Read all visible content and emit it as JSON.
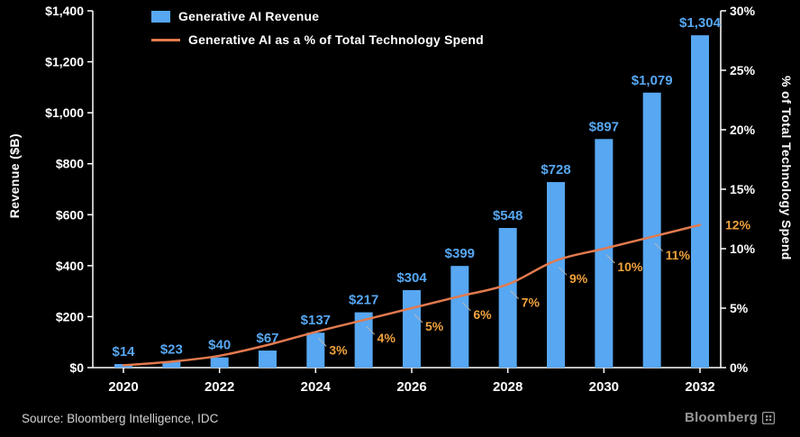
{
  "legend": {
    "items": [
      {
        "label": "Generative AI Revenue",
        "type": "bar",
        "color": "#57a7f2"
      },
      {
        "label": "Generative AI as a % of Total Technology Spend",
        "type": "line",
        "color": "#e27a4e"
      }
    ]
  },
  "footer": {
    "source": "Source: Bloomberg Intelligence, IDC",
    "brand": "Bloomberg"
  },
  "colors": {
    "background": "#000000",
    "axis": "#ffffff",
    "bar": "#57a7f2",
    "bar_label": "#57a7f2",
    "line": "#e27a4e",
    "line_label": "#f0a23c",
    "connector": "#b8b8b8",
    "source_text": "#d2d2d2",
    "brand": "#969696"
  },
  "chart_data": {
    "type": "bar",
    "subtype": "bar+line dual-axis combo",
    "categories": [
      "2020",
      "2021",
      "2022",
      "2023",
      "2024",
      "2025",
      "2026",
      "2027",
      "2028",
      "2029",
      "2030",
      "2031",
      "2032"
    ],
    "series": [
      {
        "name": "Generative AI Revenue",
        "type": "bar",
        "axis": "left",
        "color": "#57a7f2",
        "values": [
          14,
          23,
          40,
          67,
          137,
          217,
          304,
          399,
          548,
          728,
          897,
          1079,
          1304
        ],
        "labels": [
          "$14",
          "$23",
          "$40",
          "$67",
          "$137",
          "$217",
          "$304",
          "$399",
          "$548",
          "$728",
          "$897",
          "$1,079",
          "$1,304"
        ]
      },
      {
        "name": "Generative AI as a % of Total Technology Spend",
        "type": "line",
        "axis": "right",
        "color": "#e27a4e",
        "values": [
          0.2,
          0.5,
          1.0,
          1.9,
          3,
          4,
          5,
          6,
          7,
          9,
          10,
          11,
          12
        ],
        "labels": [
          "",
          "",
          "",
          "",
          "3%",
          "4%",
          "5%",
          "6%",
          "7%",
          "9%",
          "10%",
          "11%",
          "12%"
        ]
      }
    ],
    "left_axis": {
      "title": "Revenue ($B)",
      "min": 0,
      "max": 1400,
      "step": 200,
      "tick_labels": [
        "$0",
        "$200",
        "$400",
        "$600",
        "$800",
        "$1,000",
        "$1,200",
        "$1,400"
      ]
    },
    "right_axis": {
      "title": "% of Total Technology Spend",
      "min": 0,
      "max": 30,
      "step": 5,
      "tick_labels": [
        "0%",
        "5%",
        "10%",
        "15%",
        "20%",
        "25%",
        "30%"
      ]
    },
    "x_axis": {
      "tick_labels": [
        "2020",
        "2022",
        "2024",
        "2026",
        "2028",
        "2030",
        "2032"
      ],
      "tick_indices": [
        0,
        2,
        4,
        6,
        8,
        10,
        12
      ]
    },
    "grid": false,
    "legend_position": "top-left"
  }
}
